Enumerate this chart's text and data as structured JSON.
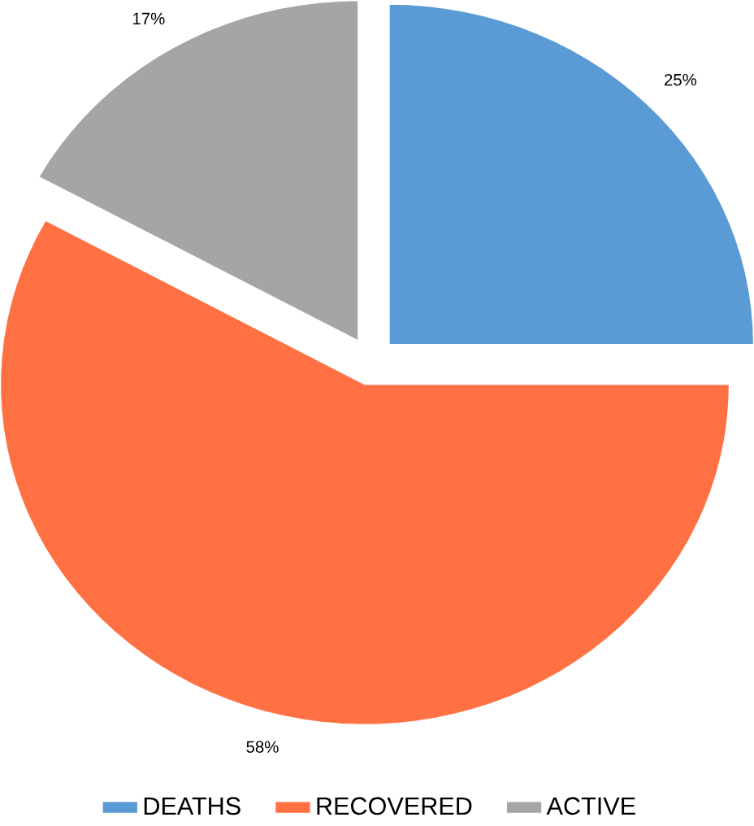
{
  "chart_data": {
    "type": "pie",
    "categories": [
      "DEATHS",
      "RECOVERED",
      "ACTIVE"
    ],
    "values": [
      25,
      58,
      17
    ],
    "value_labels": [
      "25%",
      "58%",
      "17%"
    ],
    "colors": [
      "#5b9bd5",
      "#ff7043",
      "#a5a5a5"
    ],
    "legend": "bottom"
  }
}
